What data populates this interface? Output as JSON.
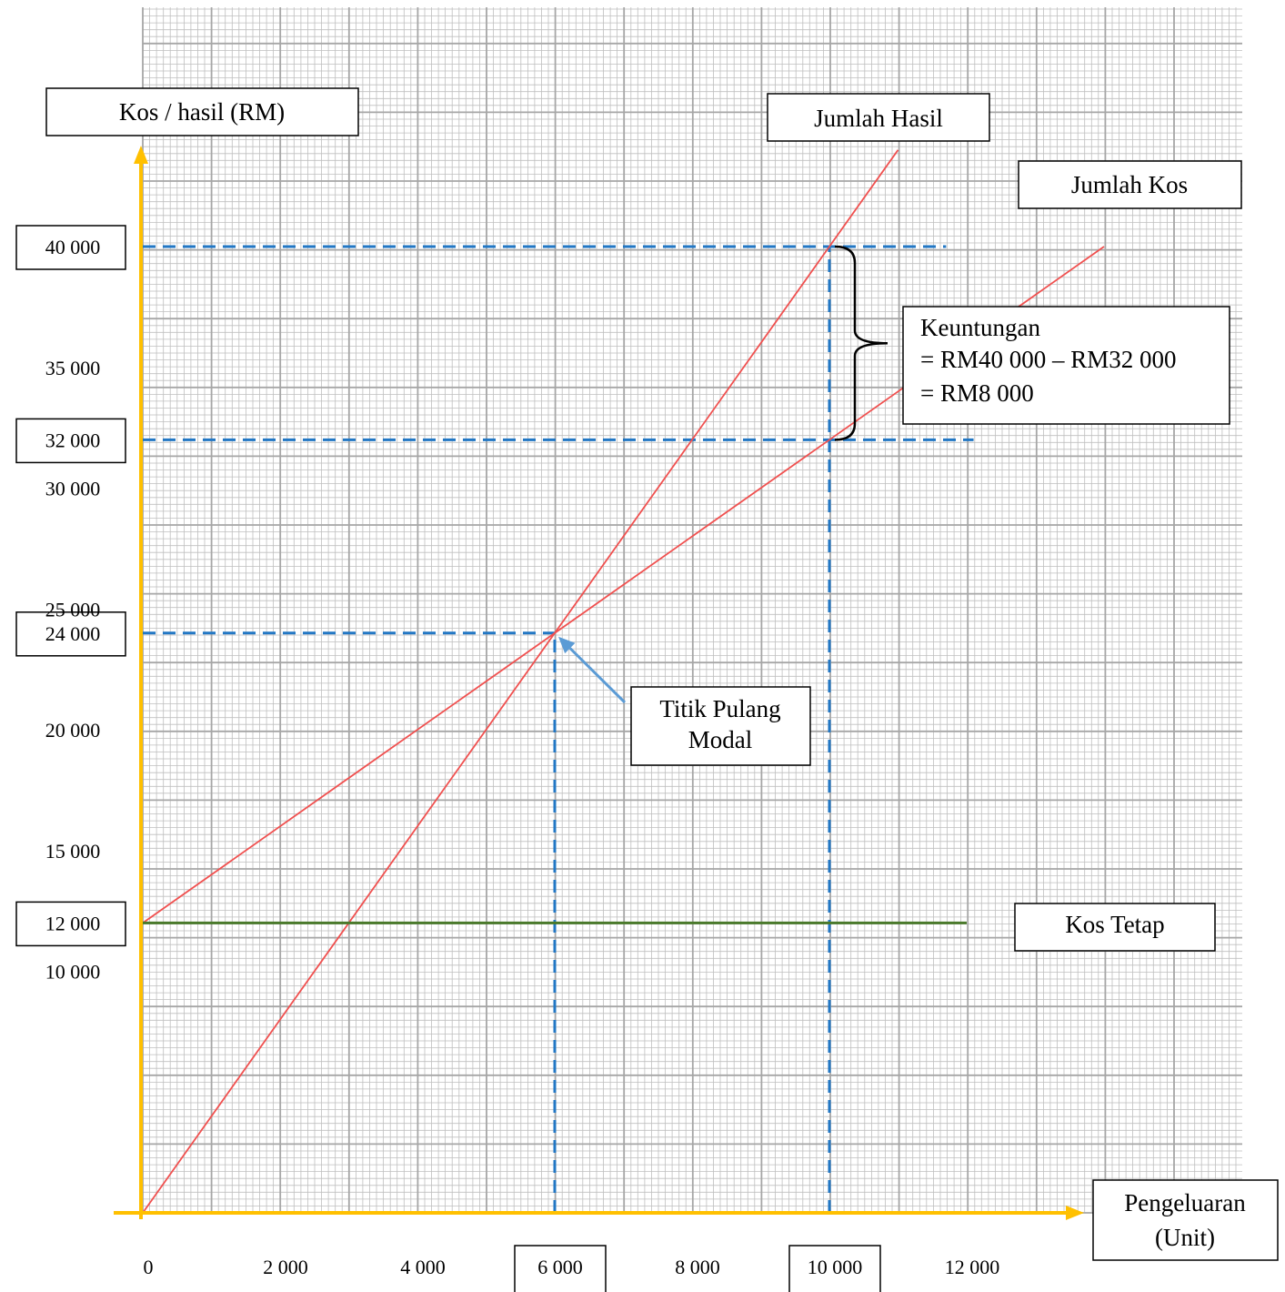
{
  "chart_data": {
    "type": "line",
    "title": "",
    "ylabel": "Kos / hasil (RM)",
    "xlabel": [
      "Pengeluaran",
      "(Unit)"
    ],
    "xlim": [
      0,
      14000
    ],
    "ylim": [
      0,
      44000
    ],
    "x_ticks": [
      {
        "value": 0,
        "label": "0",
        "boxed": false
      },
      {
        "value": 2000,
        "label": "2 000",
        "boxed": false
      },
      {
        "value": 4000,
        "label": "4 000",
        "boxed": false
      },
      {
        "value": 6000,
        "label": "6 000",
        "boxed": true
      },
      {
        "value": 8000,
        "label": "8 000",
        "boxed": false
      },
      {
        "value": 10000,
        "label": "10 000",
        "boxed": true
      },
      {
        "value": 12000,
        "label": "12 000",
        "boxed": false
      }
    ],
    "y_ticks": [
      {
        "value": 10000,
        "label": "10 000",
        "boxed": false
      },
      {
        "value": 12000,
        "label": "12 000",
        "boxed": true
      },
      {
        "value": 15000,
        "label": "15 000",
        "boxed": false
      },
      {
        "value": 20000,
        "label": "20 000",
        "boxed": false
      },
      {
        "value": 24000,
        "label": "24 000",
        "boxed": true
      },
      {
        "value": 25000,
        "label": "25 000",
        "boxed": false
      },
      {
        "value": 30000,
        "label": "30 000",
        "boxed": false
      },
      {
        "value": 32000,
        "label": "32 000",
        "boxed": true
      },
      {
        "value": 35000,
        "label": "35 000",
        "boxed": false
      },
      {
        "value": 40000,
        "label": "40 000",
        "boxed": true
      }
    ],
    "series": [
      {
        "name": "Jumlah Hasil",
        "color": "#f0504f",
        "x": [
          0,
          11000
        ],
        "y": [
          0,
          44000
        ]
      },
      {
        "name": "Jumlah Kos",
        "color": "#f0504f",
        "x": [
          0,
          14000
        ],
        "y": [
          12000,
          40000
        ]
      },
      {
        "name": "Kos Tetap",
        "color": "#4a7a2b",
        "x": [
          0,
          12000
        ],
        "y": [
          12000,
          12000
        ]
      }
    ],
    "reference_lines": [
      {
        "from": [
          0,
          24000
        ],
        "to": [
          6000,
          24000
        ]
      },
      {
        "from": [
          6000,
          0
        ],
        "to": [
          6000,
          24000
        ]
      },
      {
        "from": [
          0,
          40000
        ],
        "to": [
          11700,
          40000
        ]
      },
      {
        "from": [
          0,
          32000
        ],
        "to": [
          12100,
          32000
        ]
      },
      {
        "from": [
          10000,
          0
        ],
        "to": [
          10000,
          40000
        ]
      }
    ],
    "reference_color": "#2277c4",
    "axis_color": "#ffc000",
    "grid_color": "#bfbfbf",
    "grid": true,
    "annotations": {
      "break_even": {
        "lines": [
          "Titik Pulang",
          "Modal"
        ],
        "point": [
          6000,
          24000
        ]
      },
      "profit": {
        "lines": [
          "Keuntungan",
          "= RM40 000 – RM32 000",
          "= RM8 000"
        ],
        "range": [
          32000,
          40000
        ]
      }
    }
  }
}
